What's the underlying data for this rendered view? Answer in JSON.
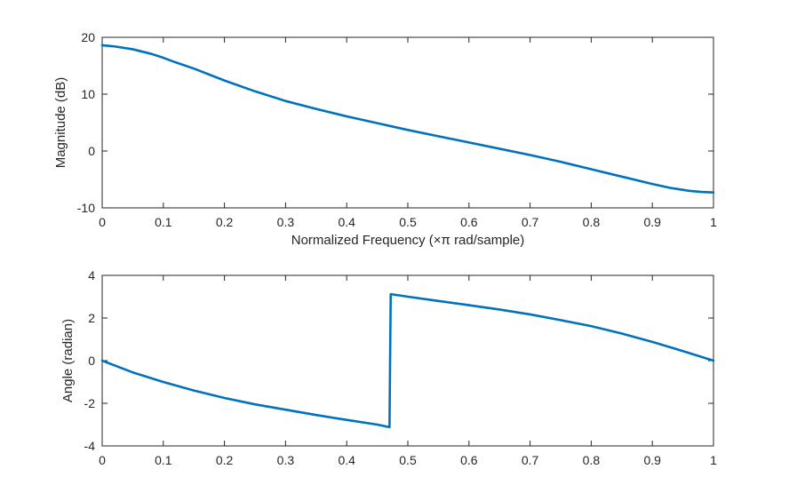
{
  "chart_data": [
    {
      "type": "line",
      "title": "",
      "xlabel": "Normalized Frequency (×π rad/sample)",
      "ylabel": "Magnitude (dB)",
      "xlim": [
        0,
        1
      ],
      "ylim": [
        -10,
        20
      ],
      "xticks": [
        "0",
        "0.1",
        "0.2",
        "0.3",
        "0.4",
        "0.5",
        "0.6",
        "0.7",
        "0.8",
        "0.9",
        "1"
      ],
      "yticks": [
        "-10",
        "0",
        "10",
        "20"
      ],
      "grid": false,
      "series": [
        {
          "color": "#0072BD",
          "x": [
            0,
            0.02,
            0.05,
            0.08,
            0.1,
            0.12,
            0.15,
            0.2,
            0.25,
            0.3,
            0.35,
            0.4,
            0.45,
            0.5,
            0.55,
            0.6,
            0.65,
            0.7,
            0.75,
            0.8,
            0.85,
            0.9,
            0.93,
            0.96,
            0.98,
            1.0
          ],
          "y": [
            18.6,
            18.4,
            17.9,
            17.1,
            16.4,
            15.6,
            14.5,
            12.4,
            10.5,
            8.8,
            7.4,
            6.1,
            4.9,
            3.7,
            2.6,
            1.5,
            0.4,
            -0.7,
            -1.9,
            -3.2,
            -4.5,
            -5.8,
            -6.5,
            -7.0,
            -7.2,
            -7.3
          ]
        }
      ]
    },
    {
      "type": "line",
      "title": "",
      "xlabel": "",
      "ylabel": "Angle (radian)",
      "xlim": [
        0,
        1
      ],
      "ylim": [
        -4,
        4
      ],
      "xticks": [
        "0",
        "0.1",
        "0.2",
        "0.3",
        "0.4",
        "0.5",
        "0.6",
        "0.7",
        "0.8",
        "0.9",
        "1"
      ],
      "yticks": [
        "-4",
        "-2",
        "0",
        "2",
        "4"
      ],
      "grid": false,
      "series": [
        {
          "color": "#0072BD",
          "x": [
            0,
            0.05,
            0.1,
            0.15,
            0.2,
            0.25,
            0.3,
            0.35,
            0.4,
            0.45,
            0.47,
            0.472,
            0.5,
            0.55,
            0.6,
            0.65,
            0.7,
            0.75,
            0.8,
            0.85,
            0.9,
            0.95,
            1.0
          ],
          "y": [
            0,
            -0.55,
            -1.0,
            -1.4,
            -1.75,
            -2.05,
            -2.3,
            -2.55,
            -2.78,
            -3.0,
            -3.12,
            3.12,
            3.0,
            2.8,
            2.6,
            2.4,
            2.17,
            1.9,
            1.62,
            1.27,
            0.88,
            0.45,
            0
          ]
        }
      ]
    }
  ]
}
